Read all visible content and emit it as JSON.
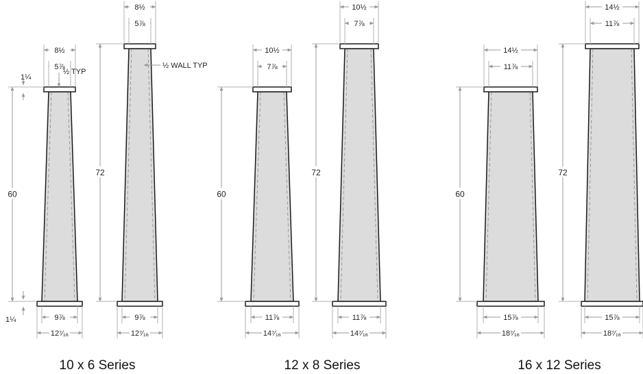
{
  "series": [
    {
      "title": "10 x 6 Series",
      "short": {
        "height_label": "60",
        "top_outer": "8½",
        "top_inner": "5⅞",
        "bottom_inner": "9⅞",
        "bottom_outer": "12⁷⁄₁₆"
      },
      "tall": {
        "height_label": "72",
        "top_outer": "8½",
        "top_inner": "5⅞",
        "bottom_inner": "9⅞",
        "bottom_outer": "12⁷⁄₁₆"
      }
    },
    {
      "title": "12 x 8 Series",
      "short": {
        "height_label": "60",
        "top_outer": "10½",
        "top_inner": "7⅞",
        "bottom_inner": "11⅞",
        "bottom_outer": "14⁷⁄₁₆"
      },
      "tall": {
        "height_label": "72",
        "top_outer": "10½",
        "top_inner": "7⅞",
        "bottom_inner": "11⅞",
        "bottom_outer": "14⁷⁄₁₆"
      }
    },
    {
      "title": "16 x 12 Series",
      "short": {
        "height_label": "60",
        "top_outer": "14½",
        "top_inner": "11⅞",
        "bottom_inner": "15⅞",
        "bottom_outer": "18⁷⁄₁₆"
      },
      "tall": {
        "height_label": "72",
        "top_outer": "14½",
        "top_inner": "11⅞",
        "bottom_inner": "15⅞",
        "bottom_outer": "18⁷⁄₁₆"
      }
    }
  ],
  "notes": {
    "cap_thickness_top": "1¼",
    "cap_thickness_bottom": "1¼",
    "typ_note": "½ TYP",
    "wall_note": "½ WALL TYP"
  },
  "colors": {
    "shaft_fill": "#dcdcdc",
    "outline": "#1a1a1a",
    "dimension": "#9a9a9a"
  }
}
